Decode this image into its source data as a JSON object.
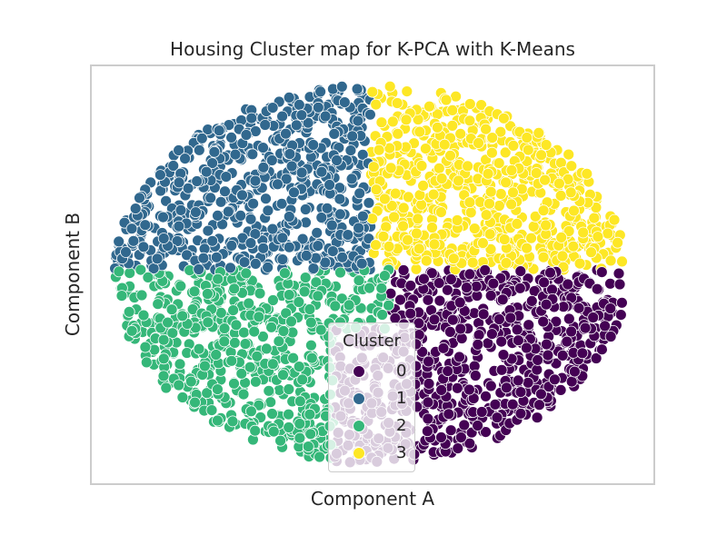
{
  "chart_data": {
    "type": "scatter",
    "title": "Housing Cluster map for K-PCA with K-Means",
    "xlabel": "Component A",
    "ylabel": "Component B",
    "xlim": [
      -1.0,
      1.0
    ],
    "ylim": [
      -1.0,
      1.0
    ],
    "xticks": [],
    "yticks": [],
    "grid": false,
    "legend": {
      "title": "Cluster",
      "placement": "lower-center"
    },
    "series": [
      {
        "name": "0",
        "color": "#440154",
        "region": "lower-right",
        "approx_center": [
          0.55,
          -0.35
        ]
      },
      {
        "name": "1",
        "color": "#31688e",
        "region": "upper-left",
        "approx_center": [
          -0.45,
          0.45
        ]
      },
      {
        "name": "2",
        "color": "#35b779",
        "region": "lower-left",
        "approx_center": [
          -0.55,
          -0.4
        ]
      },
      {
        "name": "3",
        "color": "#fde725",
        "region": "upper-right",
        "approx_center": [
          0.5,
          0.4
        ]
      }
    ]
  }
}
